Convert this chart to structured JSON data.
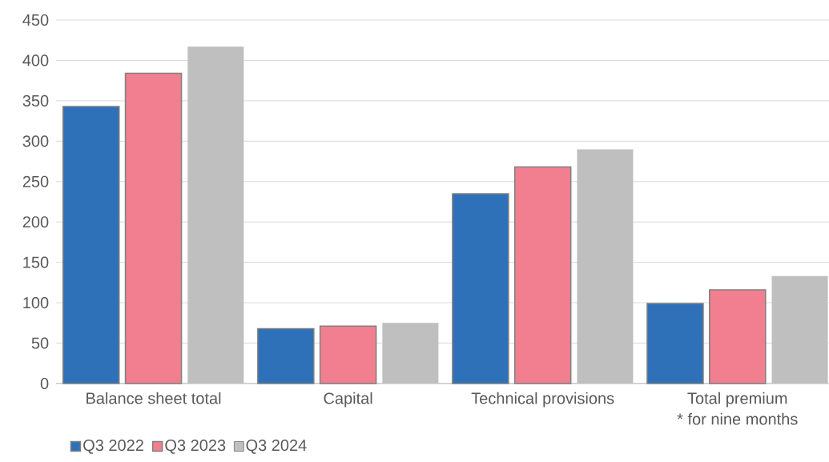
{
  "chart_data": {
    "type": "bar",
    "categories": [
      "Balance sheet total",
      "Capital",
      "Technical provisions",
      "Total premium"
    ],
    "series": [
      {
        "name": "Q3 2022",
        "color": "#2e71b8",
        "values": [
          343,
          68,
          235,
          99
        ]
      },
      {
        "name": "Q3 2023",
        "color": "#f17f8f",
        "values": [
          384,
          71,
          268,
          116
        ]
      },
      {
        "name": "Q3 2024",
        "color": "#bfbfbf",
        "values": [
          417,
          75,
          290,
          133
        ]
      }
    ],
    "ylim": [
      0,
      450
    ],
    "yticks": [
      0,
      50,
      100,
      150,
      200,
      250,
      300,
      350,
      400,
      450
    ],
    "grid": "y",
    "legend": "bottom left",
    "annotations": [
      "* for nine months"
    ]
  }
}
